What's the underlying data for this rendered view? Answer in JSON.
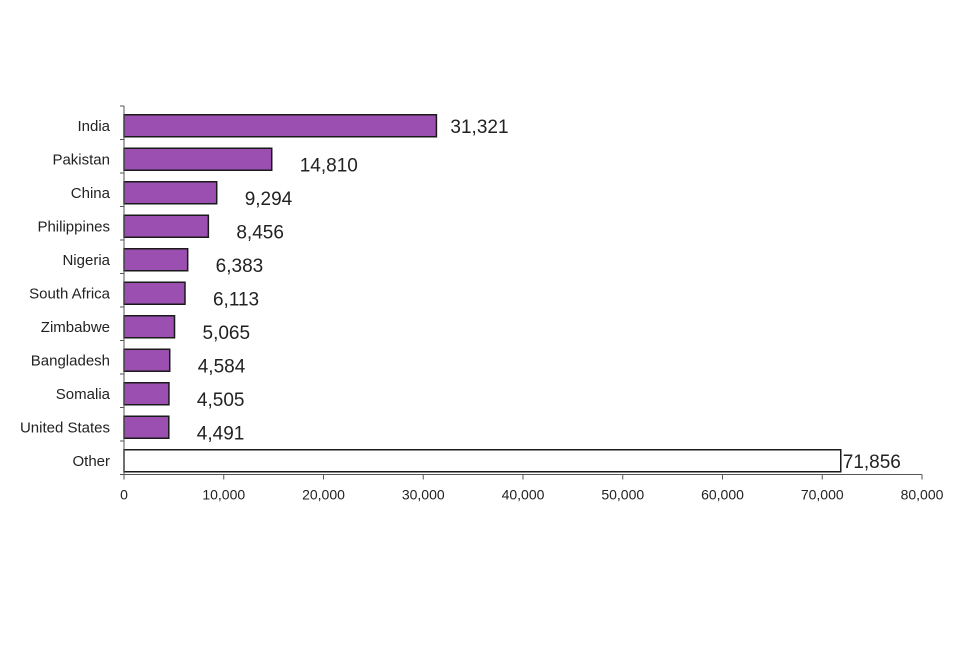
{
  "chart_data": {
    "type": "bar",
    "orientation": "horizontal",
    "title": "",
    "xlabel": "",
    "ylabel": "",
    "categories": [
      "India",
      "Pakistan",
      "China",
      "Philippines",
      "Nigeria",
      "South Africa",
      "Zimbabwe",
      "Bangladesh",
      "Somalia",
      "United States",
      "Other"
    ],
    "values": [
      31321,
      14810,
      9294,
      8456,
      6383,
      6113,
      5065,
      4584,
      4505,
      4491,
      71856
    ],
    "value_labels": [
      "31,321",
      "14,810",
      "9,294",
      "8,456",
      "6,383",
      "6,113",
      "5,065",
      "4,584",
      "4,505",
      "4,491",
      "71,856"
    ],
    "bar_colors": [
      "#9b4fb0",
      "#9b4fb0",
      "#9b4fb0",
      "#9b4fb0",
      "#9b4fb0",
      "#9b4fb0",
      "#9b4fb0",
      "#9b4fb0",
      "#9b4fb0",
      "#9b4fb0",
      "#ffffff"
    ],
    "bar_outline_color": "#1a1a1a",
    "xlim": [
      0,
      80000
    ],
    "x_ticks": [
      0,
      10000,
      20000,
      30000,
      40000,
      50000,
      60000,
      70000,
      80000
    ],
    "x_tick_labels": [
      "0",
      "10,000",
      "20,000",
      "30,000",
      "40,000",
      "50,000",
      "60,000",
      "70,000",
      "80,000"
    ],
    "grid": false,
    "legend": "none"
  }
}
